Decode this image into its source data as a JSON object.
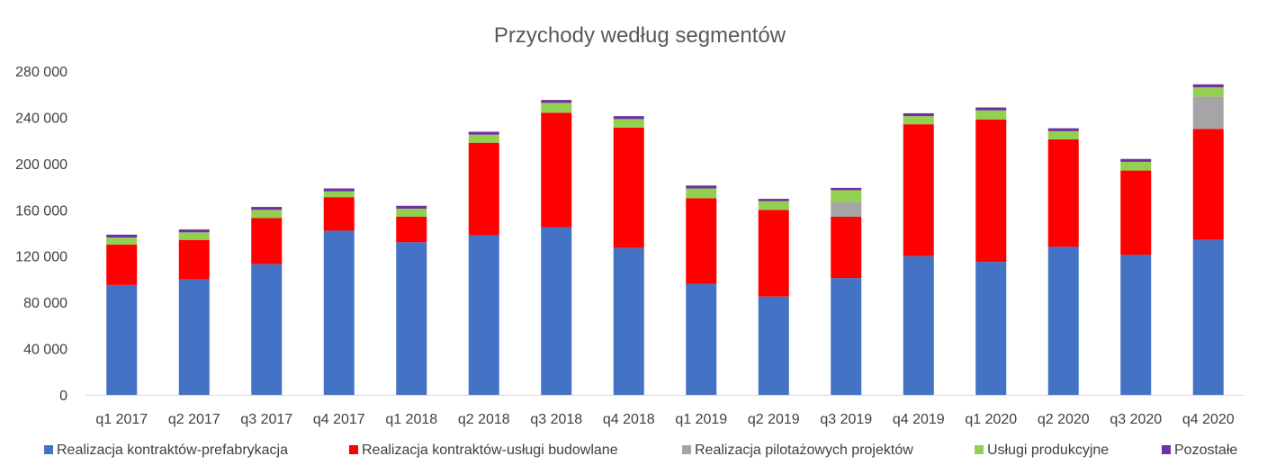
{
  "chart_data": {
    "type": "bar",
    "stacked": true,
    "title": "Przychody według segmentów",
    "categories": [
      "q1 2017",
      "q2 2017",
      "q3 2017",
      "q4 2017",
      "q1 2018",
      "q2 2018",
      "q3 2018",
      "q4 2018",
      "q1 2019",
      "q2 2019",
      "q3 2019",
      "q4 2019",
      "q1 2020",
      "q2 2020",
      "q3 2020",
      "q4 2020"
    ],
    "yticks": [
      "0",
      "40 000",
      "80 000",
      "120 000",
      "160 000",
      "200 000",
      "240 000",
      "280 000"
    ],
    "ylim": [
      0,
      280000
    ],
    "grid": false,
    "legend_position": "bottom",
    "series": [
      {
        "name": "Realizacja kontraktów-prefabrykacja",
        "color": "#4472C4",
        "values": [
          95000,
          100000,
          113000,
          142000,
          132000,
          138000,
          145000,
          127000,
          96000,
          85000,
          101000,
          120000,
          115000,
          128000,
          121000,
          134000
        ]
      },
      {
        "name": "Realizacja kontraktów-usługi budowlane",
        "color": "#FF0000",
        "values": [
          35000,
          34000,
          40000,
          29000,
          22000,
          80000,
          99000,
          104000,
          74000,
          75000,
          53000,
          114000,
          123000,
          93000,
          73000,
          96000
        ]
      },
      {
        "name": "Realizacja pilotażowych projektów",
        "color": "#A5A5A5",
        "values": [
          0,
          0,
          0,
          0,
          0,
          0,
          0,
          0,
          0,
          0,
          13000,
          0,
          0,
          0,
          0,
          28000
        ]
      },
      {
        "name": "Usługi produkcyjne",
        "color": "#92D050",
        "values": [
          6000,
          6500,
          7000,
          5000,
          7000,
          7000,
          8500,
          7500,
          8500,
          7500,
          10000,
          7000,
          8000,
          7000,
          7500,
          8000
        ]
      },
      {
        "name": "Pozostałe",
        "color": "#7030A0",
        "values": [
          2500,
          2500,
          2500,
          2500,
          2500,
          2500,
          2500,
          2500,
          2500,
          2000,
          2000,
          2500,
          2500,
          2500,
          2500,
          2500
        ]
      }
    ]
  }
}
